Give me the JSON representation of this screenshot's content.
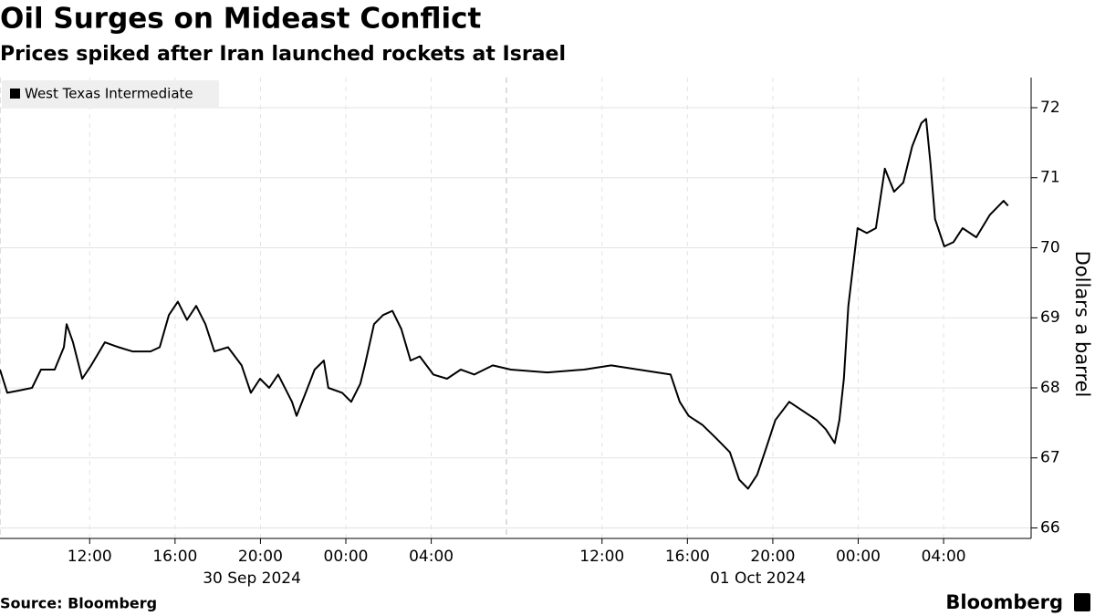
{
  "chart_data": {
    "type": "line",
    "title": "Oil Surges on Mideast Conflict",
    "subtitle": "Prices spiked after Iran launched rockets at Israel",
    "y_label": "Dollars a barrel",
    "source": "Source: Bloomberg",
    "brand": "Bloomberg",
    "legend_position": "top-left",
    "grid": true,
    "x": [
      7.8,
      8.14,
      8.65,
      9.3,
      9.72,
      10.36,
      10.79,
      10.92,
      11.22,
      11.65,
      12.07,
      12.71,
      13.36,
      14.0,
      14.85,
      15.28,
      15.71,
      16.13,
      16.56,
      16.99,
      17.42,
      17.84,
      18.48,
      19.12,
      19.55,
      19.98,
      20.41,
      20.83,
      21.48,
      21.69,
      22.12,
      22.54,
      22.97,
      23.18,
      23.83,
      24.25,
      24.68,
      24.89,
      25.32,
      25.75,
      26.18,
      26.6,
      27.03,
      27.46,
      28.1,
      28.74,
      29.38,
      30.02,
      30.88,
      31.73,
      33.44,
      35.15,
      36.43,
      37.71,
      39.21,
      39.64,
      40.06,
      40.71,
      41.35,
      41.99,
      42.42,
      42.84,
      43.27,
      43.7,
      44.12,
      44.77,
      45.41,
      46.05,
      46.48,
      46.9,
      47.12,
      47.33,
      47.54,
      47.97,
      48.4,
      48.83,
      49.25,
      49.68,
      50.11,
      50.53,
      50.96,
      51.18,
      51.39,
      51.6,
      52.03,
      52.46,
      52.89,
      53.53,
      54.17,
      54.81,
      55.02
    ],
    "series": [
      {
        "name": "West Texas Intermediate",
        "color": "#000000",
        "values": [
          68.26,
          67.93,
          67.96,
          68.0,
          68.26,
          68.26,
          68.58,
          68.91,
          68.65,
          68.13,
          68.32,
          68.65,
          68.58,
          68.52,
          68.52,
          68.58,
          69.04,
          69.23,
          68.97,
          69.17,
          68.91,
          68.52,
          68.58,
          68.32,
          67.93,
          68.13,
          68.0,
          68.19,
          67.8,
          67.6,
          67.93,
          68.26,
          68.39,
          68.0,
          67.93,
          67.8,
          68.06,
          68.32,
          68.91,
          69.04,
          69.1,
          68.84,
          68.39,
          68.45,
          68.19,
          68.13,
          68.26,
          68.19,
          68.32,
          68.26,
          68.22,
          68.26,
          68.32,
          68.26,
          68.19,
          67.8,
          67.6,
          67.47,
          67.28,
          67.08,
          66.69,
          66.56,
          66.76,
          67.15,
          67.54,
          67.8,
          67.67,
          67.54,
          67.41,
          67.21,
          67.54,
          68.13,
          69.17,
          70.28,
          70.21,
          70.28,
          71.13,
          70.8,
          70.93,
          71.45,
          71.78,
          71.84,
          71.19,
          70.41,
          70.02,
          70.08,
          70.28,
          70.15,
          70.47,
          70.67,
          70.6
        ]
      }
    ],
    "xlim": [
      7.8,
      56.1
    ],
    "xticks": [
      {
        "value": 12,
        "label": "12:00"
      },
      {
        "value": 16,
        "label": "16:00"
      },
      {
        "value": 20,
        "label": "20:00"
      },
      {
        "value": 24,
        "label": "00:00"
      },
      {
        "value": 28,
        "label": "04:00"
      },
      {
        "value": 36,
        "label": "12:00"
      },
      {
        "value": 40,
        "label": "16:00"
      },
      {
        "value": 44,
        "label": "20:00"
      },
      {
        "value": 48,
        "label": "00:00"
      },
      {
        "value": 52,
        "label": "04:00"
      }
    ],
    "date_labels": [
      {
        "value": 19.6,
        "label": "30 Sep 2024"
      },
      {
        "value": 43.3,
        "label": "01 Oct 2024"
      }
    ],
    "ylim": [
      65.85,
      72.43
    ],
    "yticks": [
      66,
      67,
      68,
      69,
      70,
      71,
      72
    ]
  }
}
